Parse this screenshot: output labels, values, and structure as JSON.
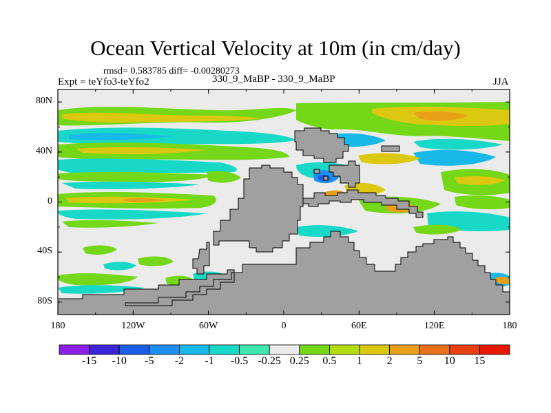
{
  "title": "Ocean Vertical Velocity at 10m (in cm/day)",
  "stats_line": "rmsd= 0.583785 diff= -0.00280273",
  "expt_line": "Expt = teYfo3-teYfo2",
  "center_label": "330_9_MaBP - 330_9_MaBP",
  "season": "JJA",
  "axes": {
    "lat_ticks": [
      {
        "value": 80,
        "label": "80N"
      },
      {
        "value": 40,
        "label": "40N"
      },
      {
        "value": 0,
        "label": "0"
      },
      {
        "value": -40,
        "label": "40S"
      },
      {
        "value": -80,
        "label": "80S"
      }
    ],
    "lon_ticks": [
      {
        "value": -180,
        "label": "180"
      },
      {
        "value": -120,
        "label": "120W"
      },
      {
        "value": -60,
        "label": "60W"
      },
      {
        "value": 0,
        "label": "0"
      },
      {
        "value": 60,
        "label": "60E"
      },
      {
        "value": 120,
        "label": "120E"
      },
      {
        "value": 180,
        "label": "180"
      }
    ],
    "lat_range": [
      -90,
      90
    ],
    "lon_range": [
      -180,
      180
    ]
  },
  "colorbar": {
    "labels": [
      "-15",
      "-10",
      "-5",
      "-2",
      "-1",
      "-0.5",
      "-0.25",
      "0.25",
      "0.5",
      "1",
      "2",
      "5",
      "10",
      "15"
    ],
    "colors": [
      "#8c1fe6",
      "#3c24d8",
      "#1a5ee8",
      "#1e8ef0",
      "#18b8e8",
      "#18d8c8",
      "#40e8b0",
      "#ebebeb",
      "#74d818",
      "#b4dc10",
      "#dcc810",
      "#e8a018",
      "#e87018",
      "#e84010",
      "#e61800"
    ]
  },
  "map_colors": {
    "land": "#a0a0a0",
    "neutral": "#ebebeb"
  }
}
